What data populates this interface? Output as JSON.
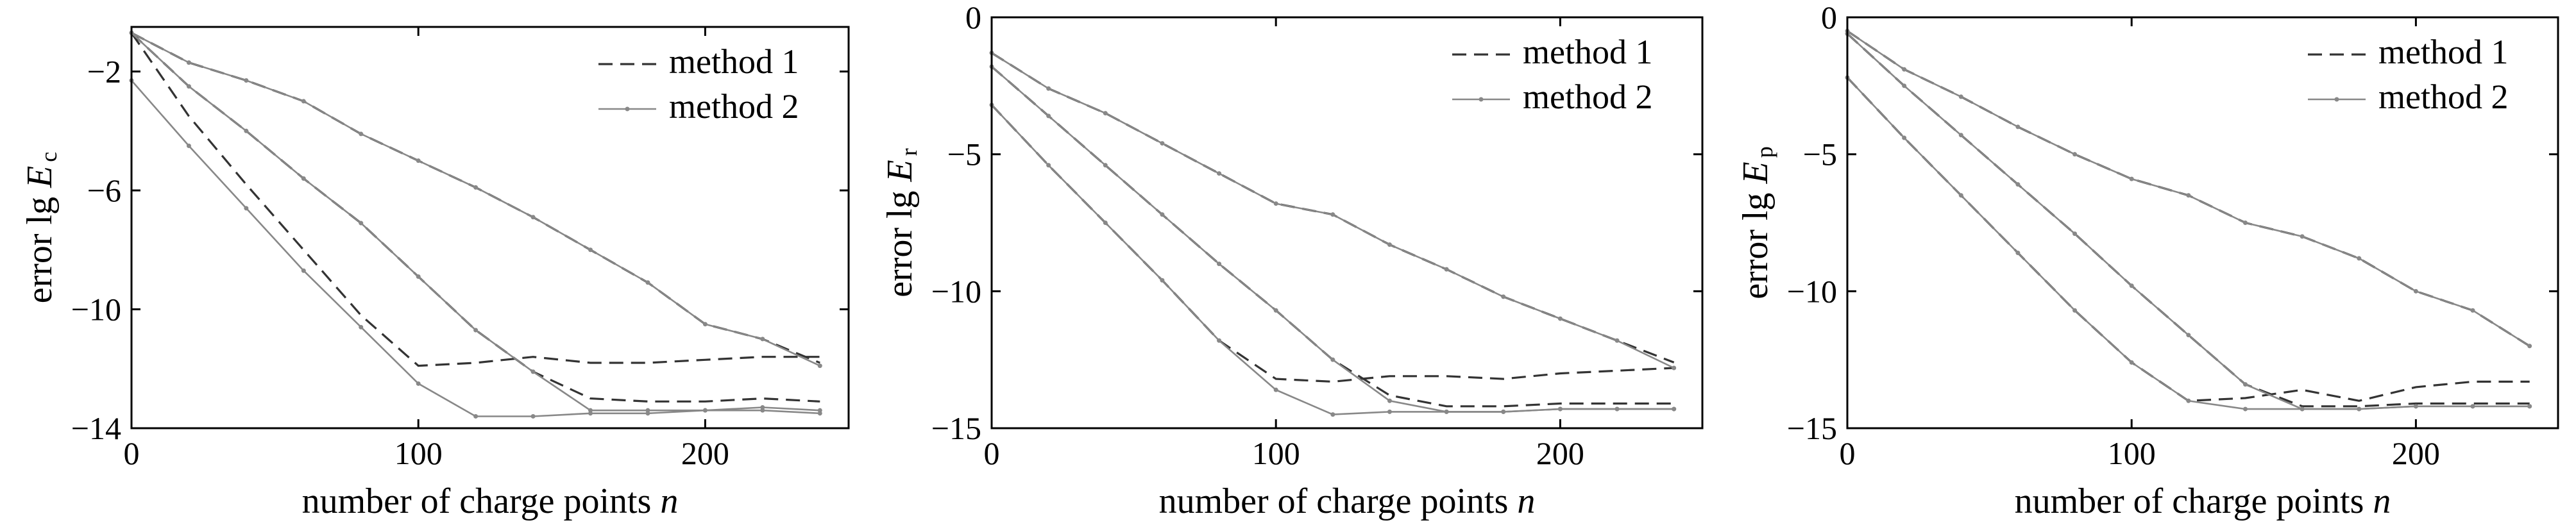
{
  "chart_data": [
    {
      "type": "line",
      "xlabel": "number of charge points n",
      "ylabel": {
        "prefix": "error lg ",
        "symbol": "E",
        "subscript": "c"
      },
      "xlim": [
        0,
        250
      ],
      "ylim": [
        -14,
        -0.5
      ],
      "xticks": [
        0,
        100,
        200
      ],
      "yticks": [
        -2,
        -6,
        -10,
        -14
      ],
      "grid": false,
      "legend": {
        "position": "top-right",
        "entries": [
          "method 1",
          "method 2"
        ]
      },
      "series": [
        {
          "name": "method 1",
          "style": "dashed",
          "color": "#333333",
          "x": [
            0,
            20,
            40,
            60,
            80,
            100,
            120,
            140,
            160,
            180,
            200,
            220,
            240
          ],
          "y": [
            -0.7,
            -3.5,
            -5.8,
            -8.0,
            -10.2,
            -11.9,
            -11.8,
            -11.6,
            -11.8,
            -11.8,
            -11.7,
            -11.6,
            -11.6
          ]
        },
        {
          "name": "method 1",
          "style": "dashed",
          "color": "#333333",
          "x": [
            0,
            20,
            40,
            60,
            80,
            100,
            120,
            140,
            160,
            180,
            200,
            220,
            240
          ],
          "y": [
            -0.7,
            -2.5,
            -4.0,
            -5.6,
            -7.1,
            -8.9,
            -10.7,
            -12.1,
            -13.0,
            -13.1,
            -13.1,
            -13.0,
            -13.1
          ]
        },
        {
          "name": "method 1",
          "style": "dashed",
          "color": "#333333",
          "x": [
            0,
            20,
            40,
            60,
            80,
            100,
            120,
            140,
            160,
            180,
            200,
            220,
            240
          ],
          "y": [
            -0.7,
            -1.7,
            -2.3,
            -3.0,
            -4.1,
            -5.0,
            -5.9,
            -6.9,
            -8.0,
            -9.1,
            -10.5,
            -11.0,
            -11.8
          ]
        },
        {
          "name": "method 2",
          "style": "solid-marker",
          "color": "#888888",
          "x": [
            0,
            20,
            40,
            60,
            80,
            100,
            120,
            140,
            160,
            180,
            200,
            220,
            240
          ],
          "y": [
            -2.3,
            -4.5,
            -6.6,
            -8.7,
            -10.6,
            -12.5,
            -13.6,
            -13.6,
            -13.5,
            -13.5,
            -13.4,
            -13.4,
            -13.5
          ]
        },
        {
          "name": "method 2",
          "style": "solid-marker",
          "color": "#888888",
          "x": [
            0,
            20,
            40,
            60,
            80,
            100,
            120,
            140,
            160,
            180,
            200,
            220,
            240
          ],
          "y": [
            -0.7,
            -2.5,
            -4.0,
            -5.6,
            -7.1,
            -8.9,
            -10.7,
            -12.1,
            -13.4,
            -13.4,
            -13.4,
            -13.3,
            -13.4
          ]
        },
        {
          "name": "method 2",
          "style": "solid-marker",
          "color": "#888888",
          "x": [
            0,
            20,
            40,
            60,
            80,
            100,
            120,
            140,
            160,
            180,
            200,
            220,
            240
          ],
          "y": [
            -0.7,
            -1.7,
            -2.3,
            -3.0,
            -4.1,
            -5.0,
            -5.9,
            -6.9,
            -8.0,
            -9.1,
            -10.5,
            -11.0,
            -11.9
          ]
        }
      ]
    },
    {
      "type": "line",
      "xlabel": "number of charge points n",
      "ylabel": {
        "prefix": "error lg ",
        "symbol": "E",
        "subscript": "r"
      },
      "xlim": [
        0,
        250
      ],
      "ylim": [
        -15,
        0
      ],
      "xticks": [
        0,
        100,
        200
      ],
      "yticks": [
        0,
        -5,
        -10,
        -15
      ],
      "grid": false,
      "legend": {
        "position": "top-right",
        "entries": [
          "method 1",
          "method 2"
        ]
      },
      "series": [
        {
          "name": "method 1",
          "style": "dashed",
          "color": "#333333",
          "x": [
            0,
            20,
            40,
            60,
            80,
            100,
            120,
            140,
            160,
            180,
            200,
            220,
            240
          ],
          "y": [
            -3.2,
            -5.4,
            -7.5,
            -9.6,
            -11.8,
            -13.2,
            -13.3,
            -13.1,
            -13.1,
            -13.2,
            -13.0,
            -12.9,
            -12.8
          ]
        },
        {
          "name": "method 1",
          "style": "dashed",
          "color": "#333333",
          "x": [
            0,
            20,
            40,
            60,
            80,
            100,
            120,
            140,
            160,
            180,
            200,
            220,
            240
          ],
          "y": [
            -1.8,
            -3.6,
            -5.4,
            -7.2,
            -9.0,
            -10.7,
            -12.5,
            -13.8,
            -14.2,
            -14.2,
            -14.1,
            -14.1,
            -14.1
          ]
        },
        {
          "name": "method 1",
          "style": "dashed",
          "color": "#333333",
          "x": [
            0,
            20,
            40,
            60,
            80,
            100,
            120,
            140,
            160,
            180,
            200,
            220,
            240
          ],
          "y": [
            -1.3,
            -2.6,
            -3.5,
            -4.6,
            -5.7,
            -6.8,
            -7.2,
            -8.3,
            -9.2,
            -10.2,
            -11.0,
            -11.8,
            -12.6
          ]
        },
        {
          "name": "method 2",
          "style": "solid-marker",
          "color": "#888888",
          "x": [
            0,
            20,
            40,
            60,
            80,
            100,
            120,
            140,
            160,
            180,
            200,
            220,
            240
          ],
          "y": [
            -3.2,
            -5.4,
            -7.5,
            -9.6,
            -11.8,
            -13.6,
            -14.5,
            -14.4,
            -14.4,
            -14.4,
            -14.3,
            -14.3,
            -14.3
          ]
        },
        {
          "name": "method 2",
          "style": "solid-marker",
          "color": "#888888",
          "x": [
            0,
            20,
            40,
            60,
            80,
            100,
            120,
            140,
            160,
            180,
            200,
            220,
            240
          ],
          "y": [
            -1.8,
            -3.6,
            -5.4,
            -7.2,
            -9.0,
            -10.7,
            -12.5,
            -14.0,
            -14.4,
            -14.4,
            -14.3,
            -14.3,
            -14.3
          ]
        },
        {
          "name": "method 2",
          "style": "solid-marker",
          "color": "#888888",
          "x": [
            0,
            20,
            40,
            60,
            80,
            100,
            120,
            140,
            160,
            180,
            200,
            220,
            240
          ],
          "y": [
            -1.3,
            -2.6,
            -3.5,
            -4.6,
            -5.7,
            -6.8,
            -7.2,
            -8.3,
            -9.2,
            -10.2,
            -11.0,
            -11.8,
            -12.8
          ]
        }
      ]
    },
    {
      "type": "line",
      "xlabel": "number of charge points n",
      "ylabel": {
        "prefix": "error lg ",
        "symbol": "E",
        "subscript": "p"
      },
      "xlim": [
        0,
        250
      ],
      "ylim": [
        -15,
        0
      ],
      "xticks": [
        0,
        100,
        200
      ],
      "yticks": [
        0,
        -5,
        -10,
        -15
      ],
      "grid": false,
      "legend": {
        "position": "top-right",
        "entries": [
          "method 1",
          "method 2"
        ]
      },
      "series": [
        {
          "name": "method 1",
          "style": "dashed",
          "color": "#333333",
          "x": [
            0,
            20,
            40,
            60,
            80,
            100,
            120,
            140,
            160,
            180,
            200,
            220,
            240
          ],
          "y": [
            -2.2,
            -4.4,
            -6.5,
            -8.6,
            -10.7,
            -12.6,
            -14.0,
            -13.9,
            -13.6,
            -14.0,
            -13.5,
            -13.3,
            -13.3
          ]
        },
        {
          "name": "method 1",
          "style": "dashed",
          "color": "#333333",
          "x": [
            0,
            20,
            40,
            60,
            80,
            100,
            120,
            140,
            160,
            180,
            200,
            220,
            240
          ],
          "y": [
            -0.6,
            -2.5,
            -4.3,
            -6.1,
            -7.9,
            -9.8,
            -11.6,
            -13.4,
            -14.2,
            -14.2,
            -14.1,
            -14.1,
            -14.1
          ]
        },
        {
          "name": "method 1",
          "style": "dashed",
          "color": "#333333",
          "x": [
            0,
            20,
            40,
            60,
            80,
            100,
            120,
            140,
            160,
            180,
            200,
            220,
            240
          ],
          "y": [
            -0.5,
            -1.9,
            -2.9,
            -4.0,
            -5.0,
            -5.9,
            -6.5,
            -7.5,
            -8.0,
            -8.8,
            -10.0,
            -10.7,
            -12.0
          ]
        },
        {
          "name": "method 2",
          "style": "solid-marker",
          "color": "#888888",
          "x": [
            0,
            20,
            40,
            60,
            80,
            100,
            120,
            140,
            160,
            180,
            200,
            220,
            240
          ],
          "y": [
            -2.2,
            -4.4,
            -6.5,
            -8.6,
            -10.7,
            -12.6,
            -14.0,
            -14.3,
            -14.3,
            -14.3,
            -14.2,
            -14.2,
            -14.2
          ]
        },
        {
          "name": "method 2",
          "style": "solid-marker",
          "color": "#888888",
          "x": [
            0,
            20,
            40,
            60,
            80,
            100,
            120,
            140,
            160,
            180,
            200,
            220,
            240
          ],
          "y": [
            -0.6,
            -2.5,
            -4.3,
            -6.1,
            -7.9,
            -9.8,
            -11.6,
            -13.4,
            -14.3,
            -14.3,
            -14.2,
            -14.2,
            -14.2
          ]
        },
        {
          "name": "method 2",
          "style": "solid-marker",
          "color": "#888888",
          "x": [
            0,
            20,
            40,
            60,
            80,
            100,
            120,
            140,
            160,
            180,
            200,
            220,
            240
          ],
          "y": [
            -0.5,
            -1.9,
            -2.9,
            -4.0,
            -5.0,
            -5.9,
            -6.5,
            -7.5,
            -8.0,
            -8.8,
            -10.0,
            -10.7,
            -12.0
          ]
        }
      ]
    }
  ]
}
